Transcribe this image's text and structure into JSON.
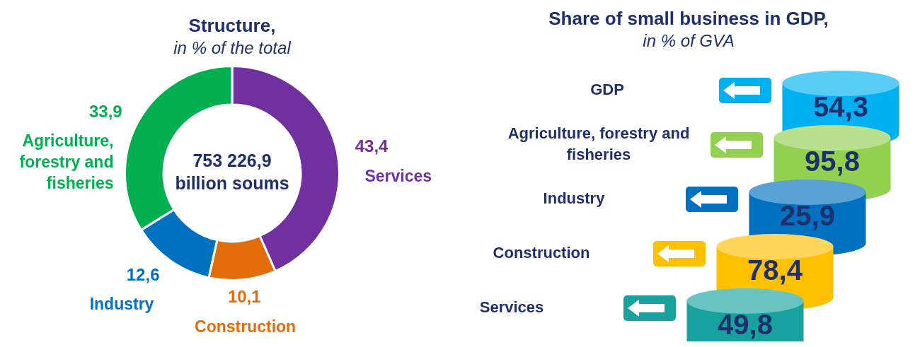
{
  "chart_data": [
    {
      "type": "donut",
      "title": "Structure,",
      "subtitle": "in % of the total",
      "categories": [
        "Services",
        "Construction",
        "Industry",
        "Agriculture, forestry and fisheries"
      ],
      "values": [
        43.4,
        10.1,
        12.6,
        33.9
      ],
      "value_labels": [
        "43,4",
        "10,1",
        "12,6",
        "33,9"
      ],
      "colors": [
        "#7030a0",
        "#e36c0a",
        "#0070c0",
        "#00b050"
      ],
      "annotations": [
        "753 226,9 billion soums"
      ]
    },
    {
      "type": "other",
      "title": "Share of small business in GDP,",
      "subtitle": "in % of GVA",
      "categories": [
        "GDP",
        "Agriculture, forestry and fisheries",
        "Industry",
        "Construction",
        "Services"
      ],
      "values": [
        54.3,
        95.8,
        25.9,
        78.4,
        49.8
      ],
      "value_labels": [
        "54,3",
        "95,8",
        "25,9",
        "78,4",
        "49,8"
      ],
      "colors": [
        "#00b0f0",
        "#92d050",
        "#0070c0",
        "#ffc000",
        "#17a2a0"
      ]
    }
  ]
}
